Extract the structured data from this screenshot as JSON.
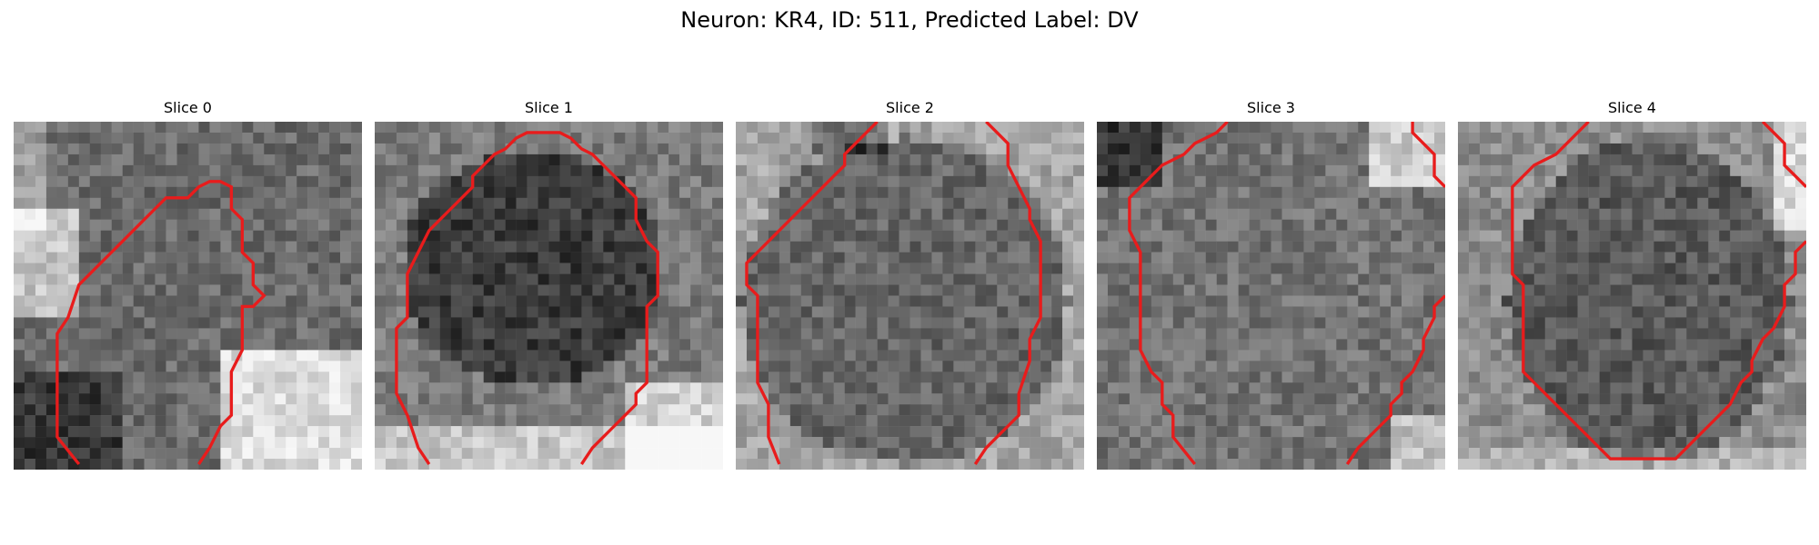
{
  "figure": {
    "suptitle": "Neuron: KR4, ID: 511, Predicted Label: DV",
    "contour_color": "#e81c1c",
    "panels": [
      {
        "title": "Slice 0"
      },
      {
        "title": "Slice 1"
      },
      {
        "title": "Slice 2"
      },
      {
        "title": "Slice 3"
      },
      {
        "title": "Slice 4"
      }
    ]
  }
}
